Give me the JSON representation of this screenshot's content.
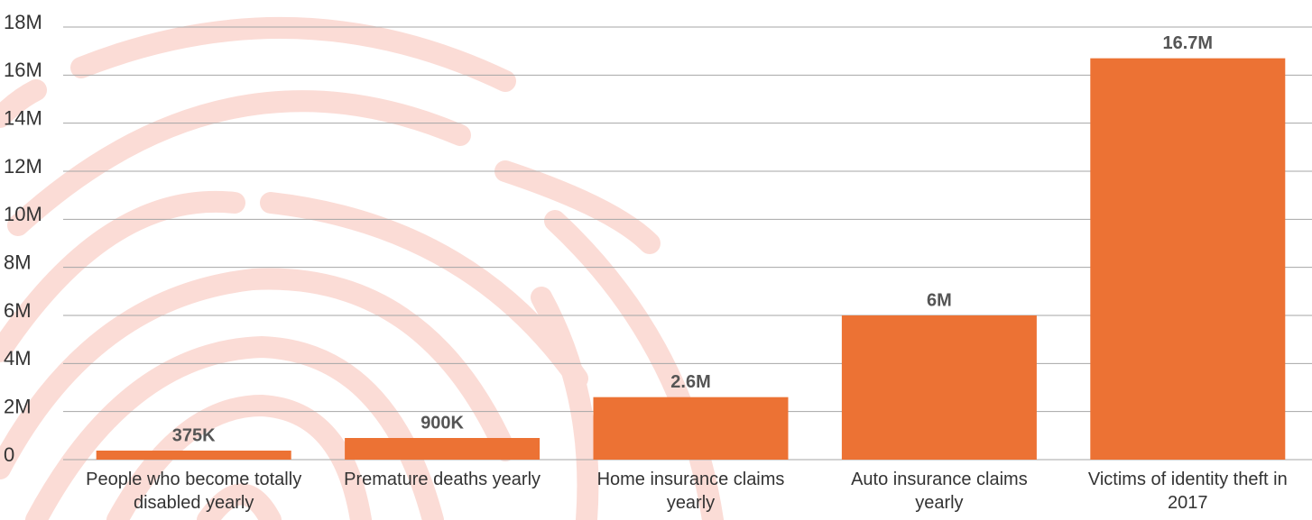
{
  "chart_data": {
    "type": "bar",
    "categories": [
      "People who become totally disabled yearly",
      "Premature deaths yearly",
      "Home insurance claims yearly",
      "Auto insurance claims yearly",
      "Victims of identity theft in 2017"
    ],
    "values": [
      375000,
      900000,
      2600000,
      6000000,
      16700000
    ],
    "value_labels": [
      "375K",
      "900K",
      "2.6M",
      "6M",
      "16.7M"
    ],
    "color": "#ec7234",
    "ylim": [
      0,
      18000000
    ],
    "yticks": [
      0,
      {
        "value": 2000000,
        "label": "2M"
      },
      {
        "value": 4000000,
        "label": "4M"
      },
      {
        "value": 6000000,
        "label": "6M"
      },
      {
        "value": 8000000,
        "label": "8M"
      },
      {
        "value": 10000000,
        "label": "10M"
      },
      {
        "value": 12000000,
        "label": "12M"
      },
      {
        "value": 14000000,
        "label": "14M"
      },
      {
        "value": 16000000,
        "label": "16M"
      },
      {
        "value": 18000000,
        "label": "18M"
      }
    ],
    "grid": true
  }
}
